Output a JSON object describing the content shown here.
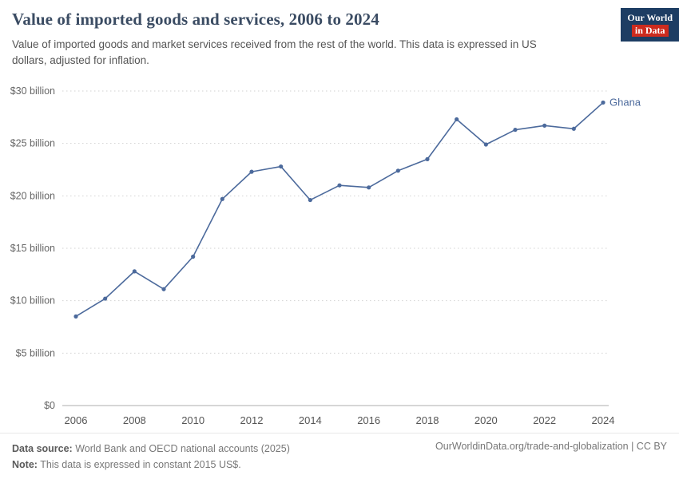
{
  "header": {
    "title": "Value of imported goods and services, 2006 to 2024",
    "subtitle": "Value of imported goods and market services received from the rest of the world. This data is expressed in US dollars, adjusted for inflation.",
    "logo": {
      "line1": "Our World",
      "line2": "in Data"
    }
  },
  "chart_data": {
    "type": "line",
    "title": "Value of imported goods and services, 2006 to 2024",
    "xlabel": "",
    "ylabel": "",
    "xlim": [
      2006,
      2024
    ],
    "ylim": [
      0,
      30
    ],
    "grid": "horizontal-dotted",
    "x_ticks": [
      2006,
      2008,
      2010,
      2012,
      2014,
      2016,
      2018,
      2020,
      2022,
      2024
    ],
    "y_ticks": [
      0,
      5,
      10,
      15,
      20,
      25,
      30
    ],
    "y_tick_labels": [
      "$0",
      "$5 billion",
      "$10 billion",
      "$15 billion",
      "$20 billion",
      "$25 billion",
      "$30 billion"
    ],
    "unit": "US$ billion, constant 2015 prices",
    "series": [
      {
        "name": "Ghana",
        "color": "#4c6a9c",
        "x": [
          2006,
          2007,
          2008,
          2009,
          2010,
          2011,
          2012,
          2013,
          2014,
          2015,
          2016,
          2017,
          2018,
          2019,
          2020,
          2021,
          2022,
          2023,
          2024
        ],
        "values": [
          8.5,
          10.2,
          12.8,
          11.1,
          14.2,
          19.7,
          22.3,
          22.8,
          19.6,
          21.0,
          20.8,
          22.4,
          23.5,
          27.3,
          24.9,
          26.3,
          26.7,
          26.4,
          28.9
        ]
      }
    ]
  },
  "footer": {
    "source_label": "Data source:",
    "source_text": " World Bank and OECD national accounts (2025)",
    "note_label": "Note:",
    "note_text": " This data is expressed in constant 2015 US$.",
    "right_text": "OurWorldinData.org/trade-and-globalization | CC BY"
  }
}
